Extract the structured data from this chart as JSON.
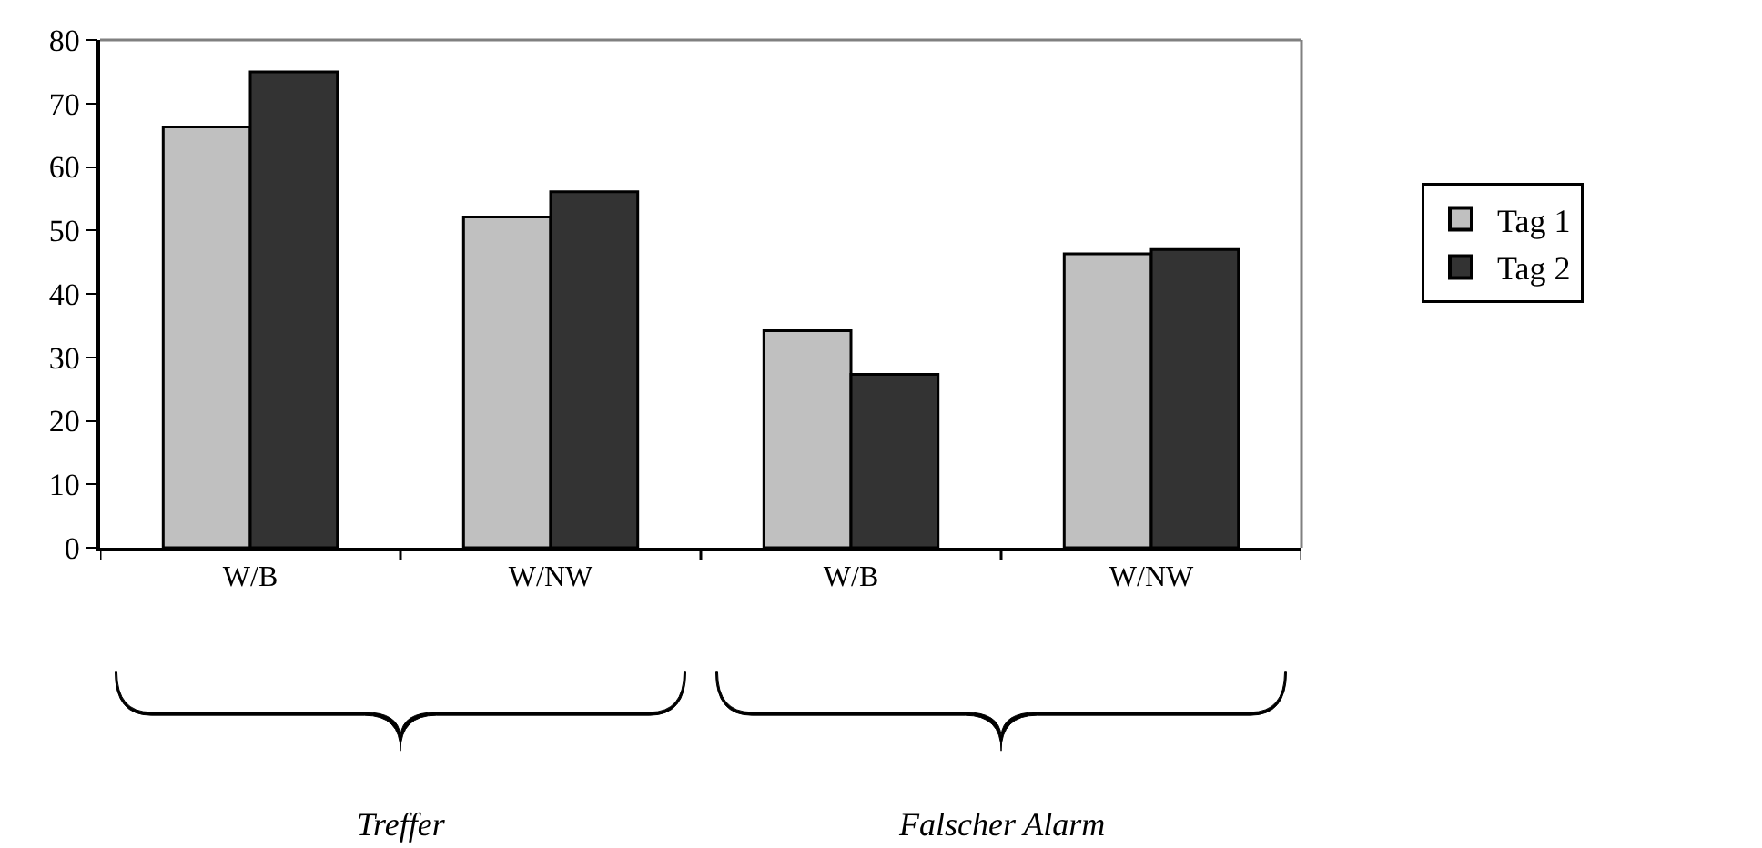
{
  "chart_data": {
    "type": "bar",
    "categories": [
      "W/B",
      "W/NW",
      "W/B",
      "W/NW"
    ],
    "series": [
      {
        "name": "Tag 1",
        "color": "#c0c0c0",
        "values": [
          66.3,
          52.1,
          34.2,
          46.3
        ]
      },
      {
        "name": "Tag 2",
        "color": "#333333",
        "values": [
          75.0,
          56.1,
          27.3,
          47.0
        ]
      }
    ],
    "ylim": [
      0,
      80
    ],
    "yticks": [
      0,
      10,
      20,
      30,
      40,
      50,
      60,
      70,
      80
    ],
    "grid": false,
    "legend": "right",
    "annotations": [
      "Treffer",
      "Falscher Alarm"
    ]
  }
}
